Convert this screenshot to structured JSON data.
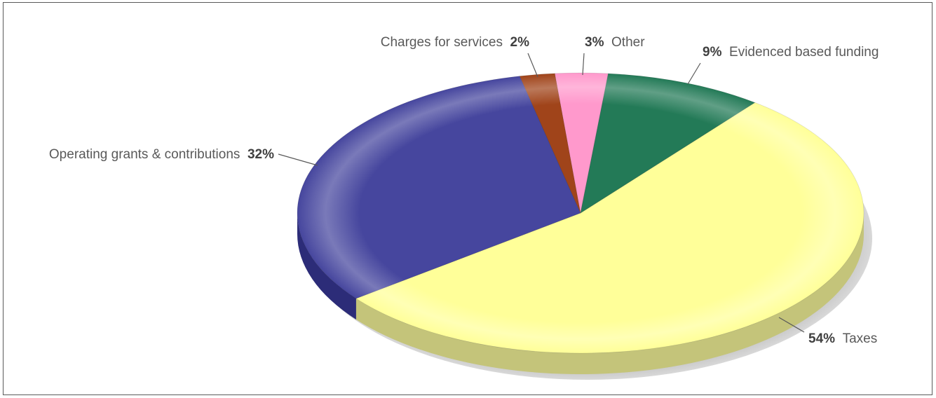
{
  "chart_data": {
    "type": "pie",
    "title": "",
    "legend": "none",
    "slices": [
      {
        "label": "Taxes",
        "pct_label": "54%",
        "value": 54,
        "color": "#FFFF99",
        "side": "#C4C47A",
        "highlight": "#FFFFCC"
      },
      {
        "label": "Operating grants & contributions",
        "pct_label": "32%",
        "value": 32,
        "color": "#46469E",
        "side": "#2C2C78",
        "highlight": "#8888CC"
      },
      {
        "label": "Charges for services",
        "pct_label": "2%",
        "value": 2,
        "color": "#A0441A",
        "side": "#6E2E10",
        "highlight": "#C87048"
      },
      {
        "label": "Other",
        "pct_label": "3%",
        "value": 3,
        "color": "#FF99CC",
        "side": "#C06E98",
        "highlight": "#FFC8E4"
      },
      {
        "label": "Evidenced based funding",
        "pct_label": "9%",
        "value": 9,
        "color": "#237A57",
        "side": "#155238",
        "highlight": "#5FA888"
      }
    ]
  }
}
